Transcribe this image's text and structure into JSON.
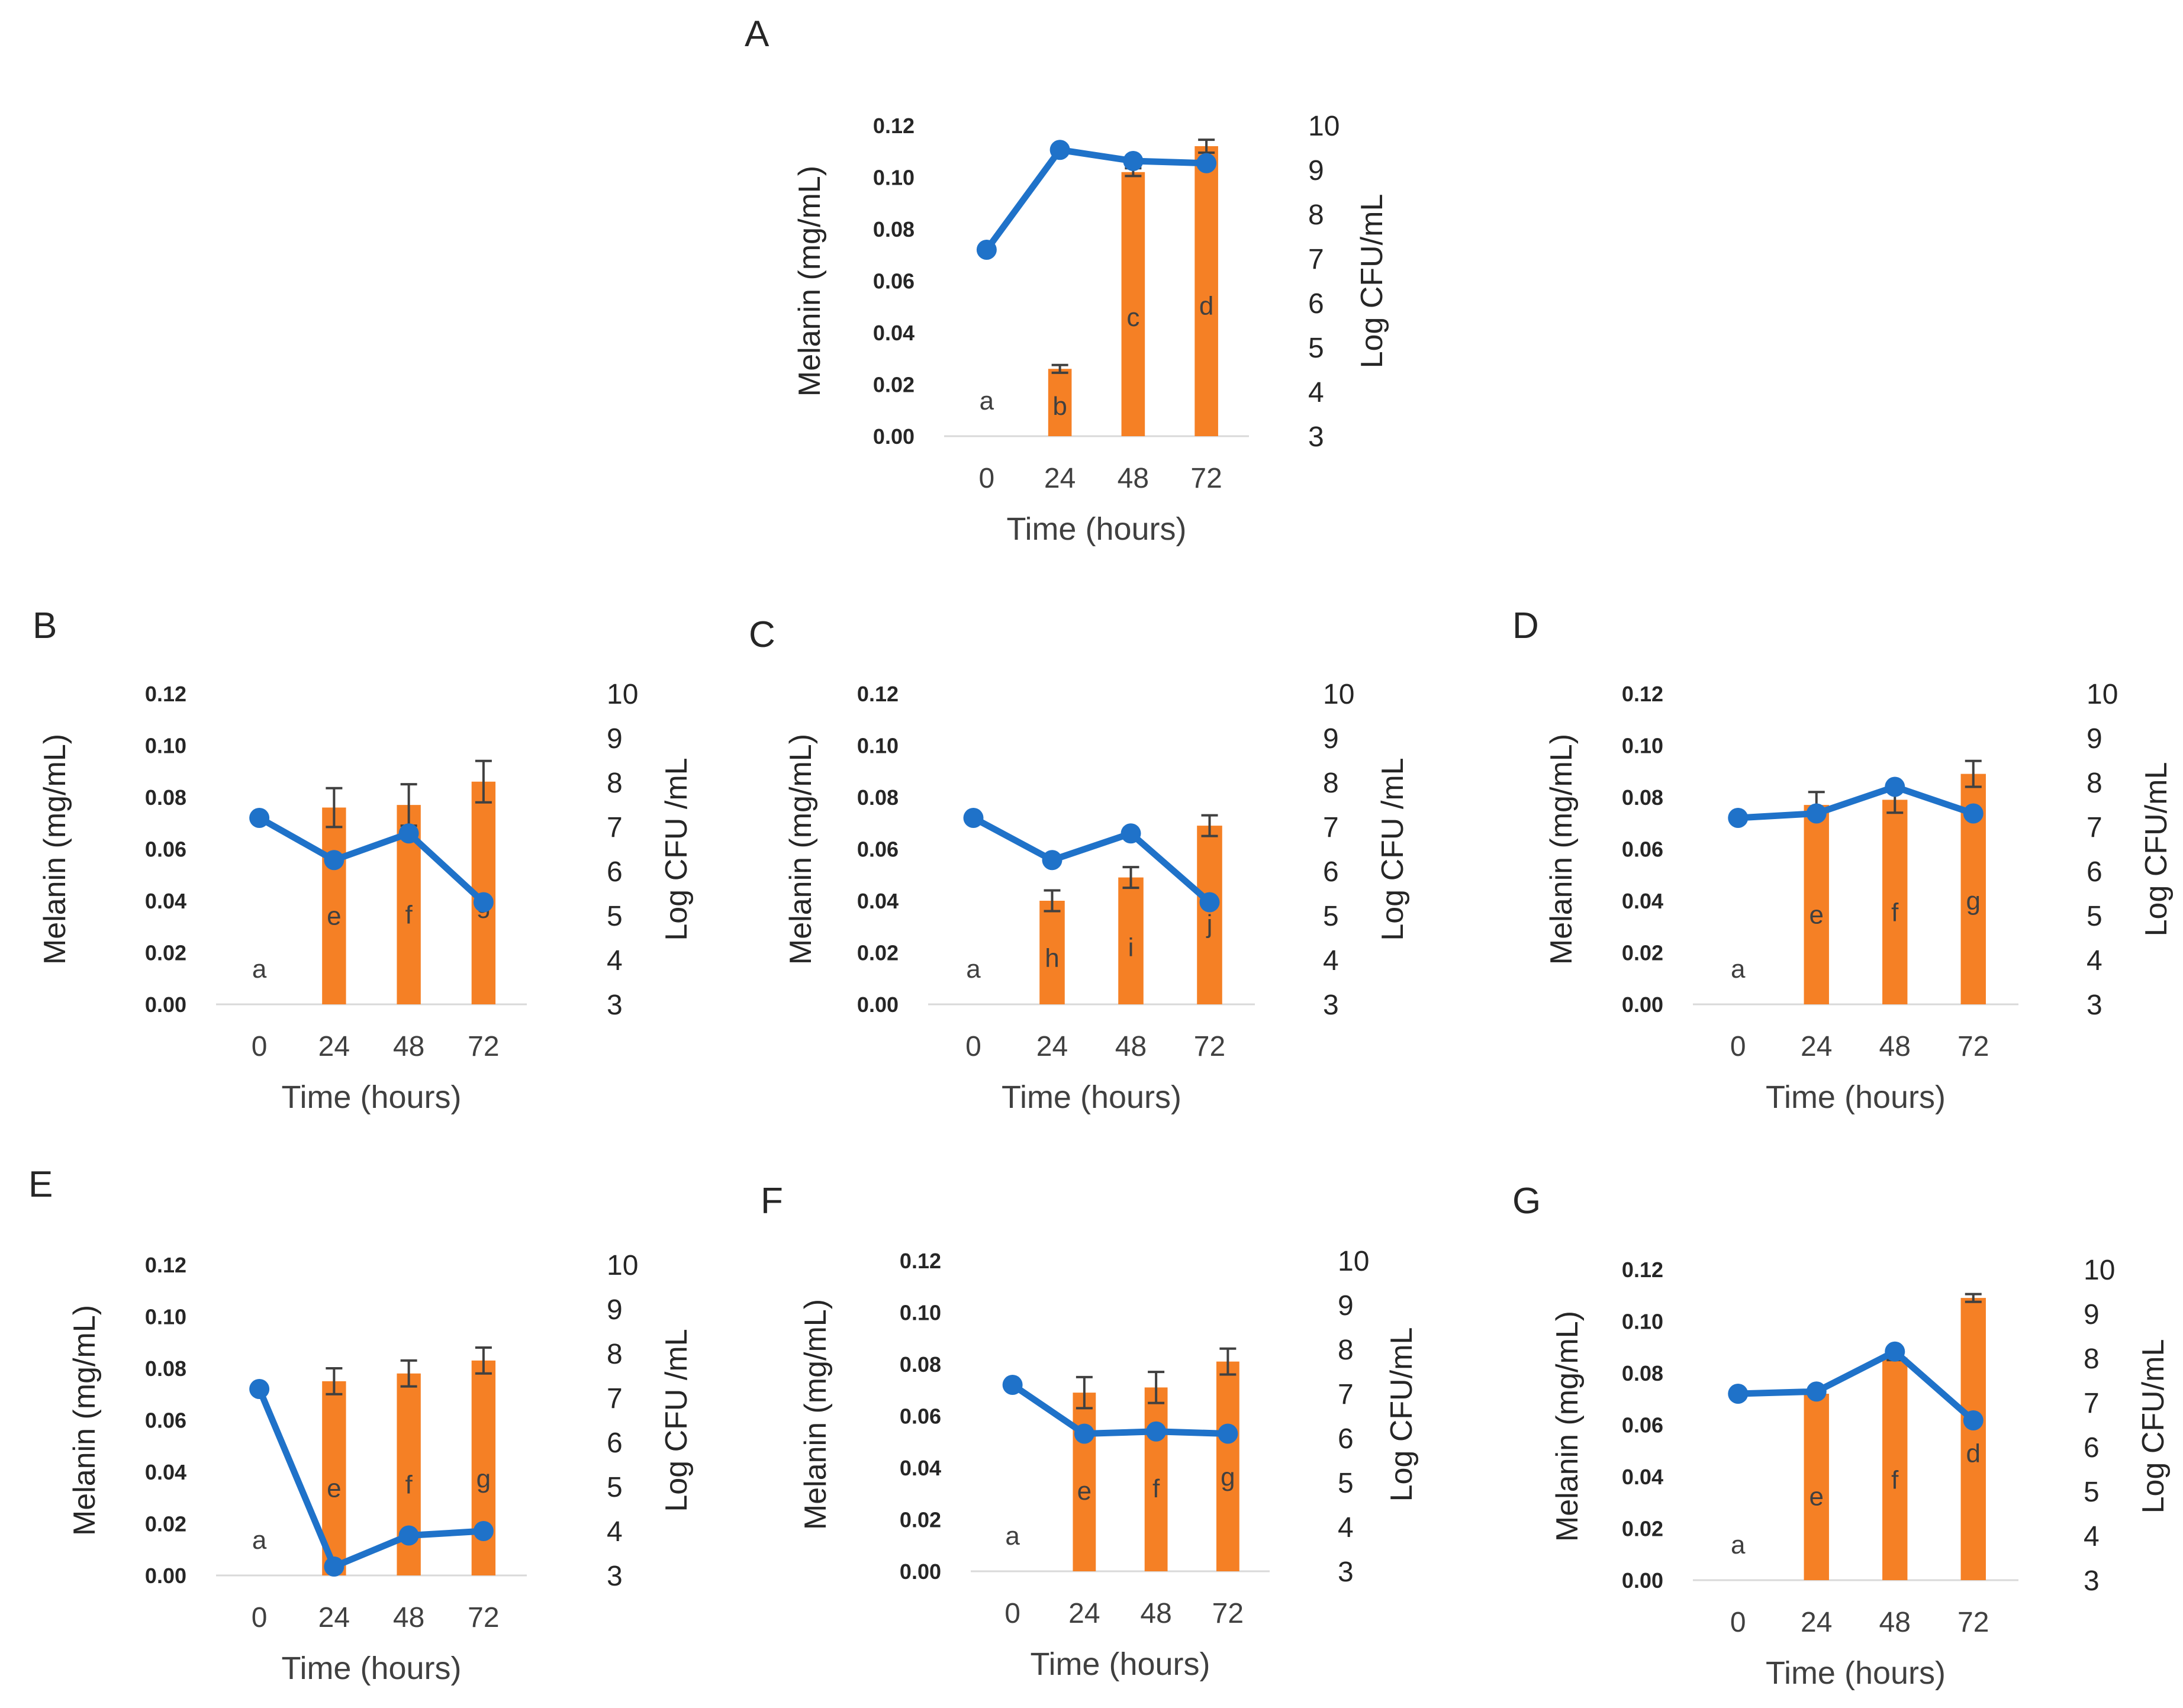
{
  "colors": {
    "bar": "#F58025",
    "line": "#1F72C9",
    "error": "#404040",
    "text": "#404040",
    "axis": "#d9d9d9"
  },
  "chart_data": [
    {
      "panel": "A",
      "type": "bar+line",
      "categories": [
        "0",
        "24",
        "48",
        "72"
      ],
      "xlabel": "Time (hours)",
      "ylabel_left": "Melanin (mg/mL)",
      "ylabel_right": "Log CFU/mL",
      "ylim_left": [
        0,
        0.12
      ],
      "ylim_right": [
        3,
        10
      ],
      "yticks_left": [
        "0.00",
        "0.02",
        "0.04",
        "0.06",
        "0.08",
        "0.10",
        "0.12"
      ],
      "yticks_right": [
        "3",
        "4",
        "5",
        "6",
        "7",
        "8",
        "9",
        "10"
      ],
      "bars": [
        0.0,
        0.026,
        0.102,
        0.112
      ],
      "bar_errors": [
        0,
        0.0015,
        0.0015,
        0.0025
      ],
      "line": [
        7.2,
        9.45,
        9.2,
        9.15
      ],
      "letters": [
        "a",
        "b",
        "c",
        "d"
      ]
    },
    {
      "panel": "B",
      "type": "bar+line",
      "categories": [
        "0",
        "24",
        "48",
        "72"
      ],
      "xlabel": "Time (hours)",
      "ylabel_left": "Melanin (mg/mL)",
      "ylabel_right": "Log CFU /mL",
      "ylim_left": [
        0,
        0.12
      ],
      "ylim_right": [
        3,
        10
      ],
      "yticks_left": [
        "0.00",
        "0.02",
        "0.04",
        "0.06",
        "0.08",
        "0.10",
        "0.12"
      ],
      "yticks_right": [
        "3",
        "4",
        "5",
        "6",
        "7",
        "8",
        "9",
        "10"
      ],
      "bars": [
        0.0,
        0.076,
        0.077,
        0.086
      ],
      "bar_errors": [
        0,
        0.0075,
        0.008,
        0.008
      ],
      "line": [
        7.2,
        6.25,
        6.85,
        5.3
      ],
      "letters": [
        "a",
        "e",
        "f",
        "g"
      ]
    },
    {
      "panel": "C",
      "type": "bar+line",
      "categories": [
        "0",
        "24",
        "48",
        "72"
      ],
      "xlabel": "Time (hours)",
      "ylabel_left": "Melanin (mg/mL)",
      "ylabel_right": "Log CFU /mL",
      "ylim_left": [
        0,
        0.12
      ],
      "ylim_right": [
        3,
        10
      ],
      "yticks_left": [
        "0.00",
        "0.02",
        "0.04",
        "0.06",
        "0.08",
        "0.10",
        "0.12"
      ],
      "yticks_right": [
        "3",
        "4",
        "5",
        "6",
        "7",
        "8",
        "9",
        "10"
      ],
      "bars": [
        0.0,
        0.04,
        0.049,
        0.069
      ],
      "bar_errors": [
        0,
        0.004,
        0.004,
        0.004
      ],
      "line": [
        7.2,
        6.25,
        6.85,
        5.3
      ],
      "letters": [
        "a",
        "h",
        "i",
        "j"
      ]
    },
    {
      "panel": "D",
      "type": "bar+line",
      "categories": [
        "0",
        "24",
        "48",
        "72"
      ],
      "xlabel": "Time (hours)",
      "ylabel_left": "Melanin (mg/mL)",
      "ylabel_right": "Log CFU/mL",
      "ylim_left": [
        0,
        0.12
      ],
      "ylim_right": [
        3,
        10
      ],
      "yticks_left": [
        "0.00",
        "0.02",
        "0.04",
        "0.06",
        "0.08",
        "0.10",
        "0.12"
      ],
      "yticks_right": [
        "3",
        "4",
        "5",
        "6",
        "7",
        "8",
        "9",
        "10"
      ],
      "bars": [
        0.0,
        0.077,
        0.079,
        0.089
      ],
      "bar_errors": [
        0,
        0.005,
        0.005,
        0.005
      ],
      "line": [
        7.2,
        7.3,
        7.9,
        7.3
      ],
      "letters": [
        "a",
        "e",
        "f",
        "g"
      ]
    },
    {
      "panel": "E",
      "type": "bar+line",
      "categories": [
        "0",
        "24",
        "48",
        "72"
      ],
      "xlabel": "Time (hours)",
      "ylabel_left": "Melanin (mg/mL)",
      "ylabel_right": "Log CFU /mL",
      "ylim_left": [
        0,
        0.12
      ],
      "ylim_right": [
        3,
        10
      ],
      "yticks_left": [
        "0.00",
        "0.02",
        "0.04",
        "0.06",
        "0.08",
        "0.10",
        "0.12"
      ],
      "yticks_right": [
        "3",
        "4",
        "5",
        "6",
        "7",
        "8",
        "9",
        "10"
      ],
      "bars": [
        0.0,
        0.075,
        0.078,
        0.083
      ],
      "bar_errors": [
        0,
        0.005,
        0.005,
        0.005
      ],
      "line": [
        7.2,
        3.2,
        3.9,
        4.0
      ],
      "letters": [
        "a",
        "e",
        "f",
        "g"
      ]
    },
    {
      "panel": "F",
      "type": "bar+line",
      "categories": [
        "0",
        "24",
        "48",
        "72"
      ],
      "xlabel": "Time (hours)",
      "ylabel_left": "Melanin (mg/mL)",
      "ylabel_right": "Log CFU/mL",
      "ylim_left": [
        0,
        0.12
      ],
      "ylim_right": [
        3,
        10
      ],
      "yticks_left": [
        "0.00",
        "0.02",
        "0.04",
        "0.06",
        "0.08",
        "0.10",
        "0.12"
      ],
      "yticks_right": [
        "3",
        "4",
        "5",
        "6",
        "7",
        "8",
        "9",
        "10"
      ],
      "bars": [
        0.0,
        0.069,
        0.071,
        0.081
      ],
      "bar_errors": [
        0,
        0.006,
        0.006,
        0.005
      ],
      "line": [
        7.2,
        6.1,
        6.15,
        6.1
      ],
      "letters": [
        "a",
        "e",
        "f",
        "g"
      ]
    },
    {
      "panel": "G",
      "type": "bar+line",
      "categories": [
        "0",
        "24",
        "48",
        "72"
      ],
      "xlabel": "Time (hours)",
      "ylabel_left": "Melanin (mg/mL)",
      "ylabel_right": "Log CFU/mL",
      "ylim_left": [
        0,
        0.12
      ],
      "ylim_right": [
        3,
        10
      ],
      "yticks_left": [
        "0.00",
        "0.02",
        "0.04",
        "0.06",
        "0.08",
        "0.10",
        "0.12"
      ],
      "yticks_right": [
        "3",
        "4",
        "5",
        "6",
        "7",
        "8",
        "9",
        "10"
      ],
      "bars": [
        0.0,
        0.072,
        0.086,
        0.109
      ],
      "bar_errors": [
        0,
        0.001,
        0.001,
        0.0015
      ],
      "line": [
        7.2,
        7.25,
        8.15,
        6.6
      ],
      "letters": [
        "a",
        "e",
        "f",
        "d"
      ]
    }
  ]
}
